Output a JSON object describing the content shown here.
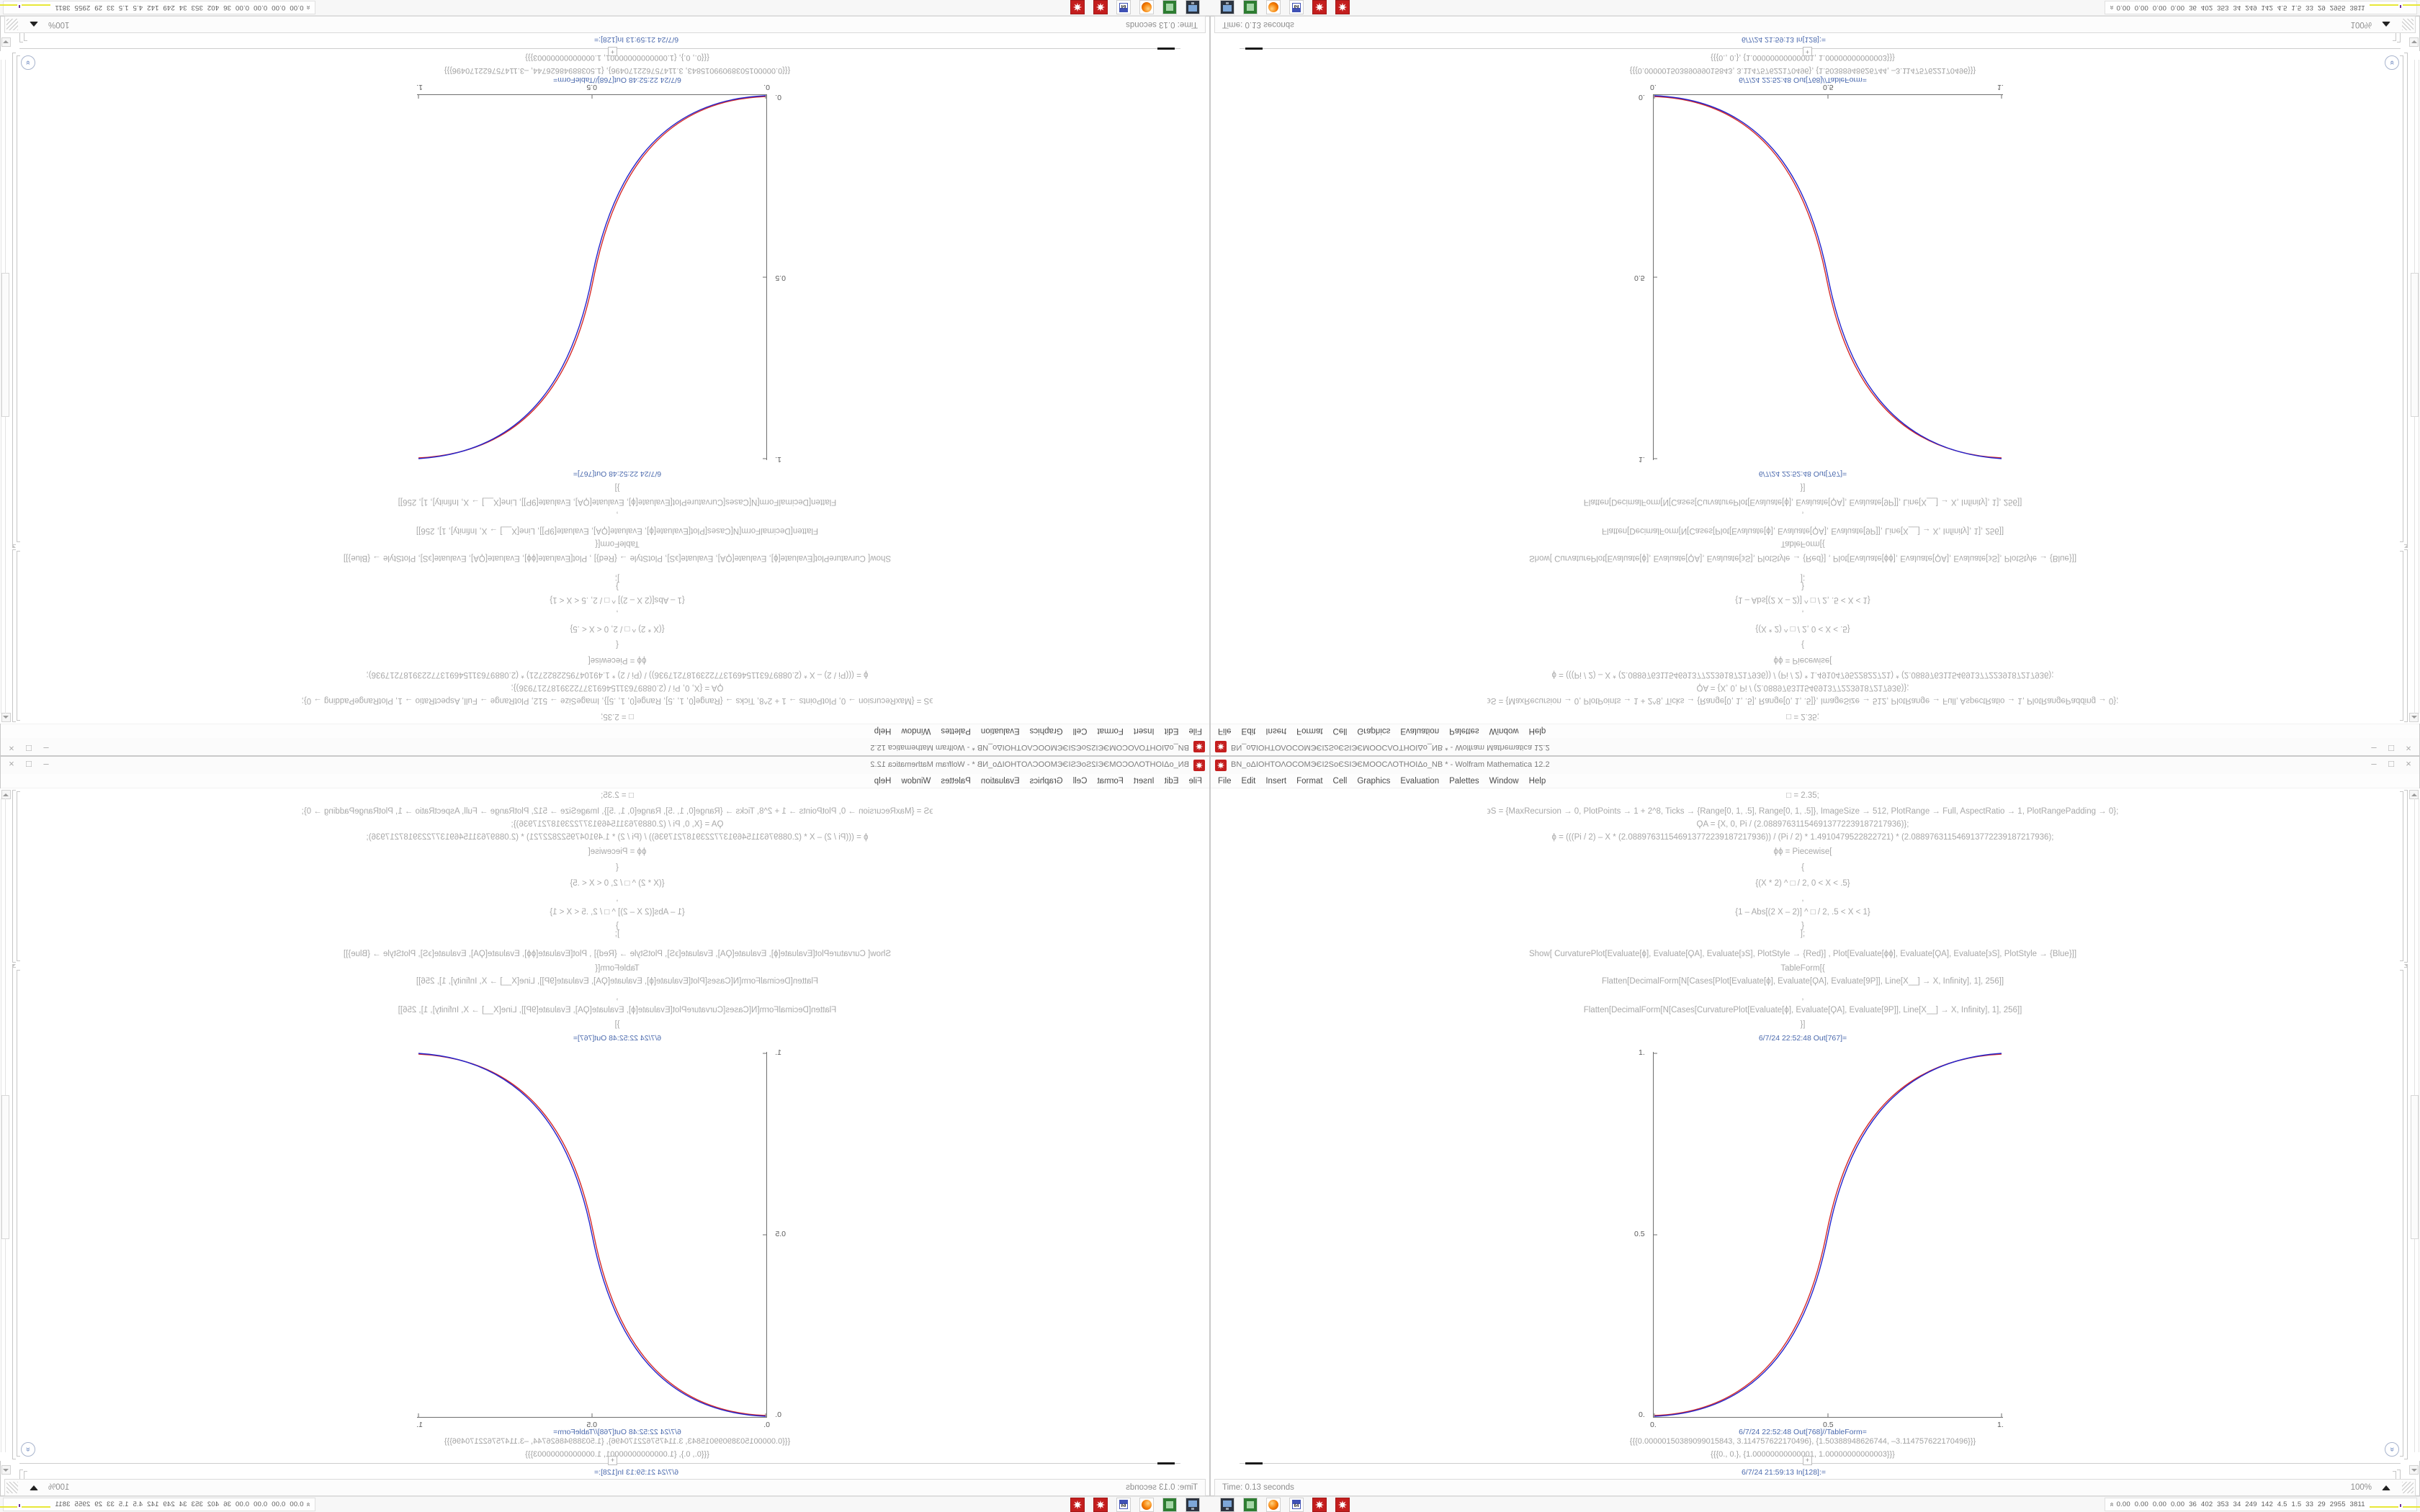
{
  "window": {
    "title": "ΒΝ_οΔΙΟΗΤΟΛΟCΟΜЭЄΙ2SοЄSΙЭЄΜΟΟCΛΟΤΗΟΙΔο_ΝΒ * - Wolfram Mathematica 12.2",
    "controls": {
      "minimize": "–",
      "maximize": "□",
      "close": "×"
    },
    "menu": [
      "File",
      "Edit",
      "Insert",
      "Format",
      "Cell",
      "Graphics",
      "Evaluation",
      "Palettes",
      "Window",
      "Help"
    ]
  },
  "code": {
    "lines": [
      "□ = 2.35;",
      "϶S = {MaxRecursion → 0, PlotPoints → 1 + 2^8, Ticks → {Range[0, 1, .5], Range[0, 1, .5]}, ImageSize → 512, PlotRange → Full, AspectRatio → 1, PlotRangePadding → 0};",
      "ϘΑ = {X, 0, Pi / (2.088976311546913772239187217936)};",
      "ϕ = (((Pi / 2) – X * (2.088976311546913772239187217936)) / (Pi / 2) * 1.4910479522822721) * (2.088976311546913772239187217936);",
      "ϕϕ = Piecewise[",
      "{",
      "{(X * 2) ^ □ / 2, 0 < X < .5}",
      ",",
      "{1 – Abs[(2 X – 2)] ^ □ / 2, .5 < X < 1}",
      "}",
      "];",
      "Show[  CurvaturePlot[Evaluate[ϕ], Evaluate[ϘΑ], Evaluate[϶S], PlotStyle → {Red}]  ,  Plot[Evaluate[ϕϕ], Evaluate[ϘΑ], Evaluate[϶S], PlotStyle → {Blue}]]",
      "TableForm[{",
      "Flatten[DecimalForm[N[Cases[Plot[Evaluate[ϕ], Evaluate[ϘΑ], Evaluate[9Ρ]], Line[X__] → X, Infinity], 1], 256]]",
      ",",
      "Flatten[DecimalForm[N[Cases[CurvaturePlot[Evaluate[ϕ], Evaluate[ϘΑ], Evaluate[9Ρ]], Line[X__] → X, Infinity], 1], 256]]",
      "}]"
    ]
  },
  "labels": {
    "out_plot": "6/7/24 22:52:48 Out[767]=",
    "out_table": "6/7/24 22:52:48 Out[768]//TableForm=",
    "in_next": "6/7/24 21:59:13 In[128]:="
  },
  "table_rows": [
    "{{{0.00000150389099015843, 3.114757622170496}, {1.50388948626744, –3.114757622170496}}}",
    "{{{0., 0.}, {1.00000000000001, 1.00000000000003}}}"
  ],
  "plot": {
    "xticks": [
      "0.",
      "0.5",
      "1."
    ],
    "yticks": [
      "1.",
      "0.5",
      "0."
    ],
    "red": "#d42a2a",
    "blue": "#2424cc"
  },
  "chart_data": {
    "type": "line",
    "title": "",
    "xlabel": "",
    "ylabel": "",
    "xlim": [
      0,
      1
    ],
    "ylim": [
      0,
      1
    ],
    "xticks": [
      0,
      0.5,
      1
    ],
    "yticks": [
      0,
      0.5,
      1
    ],
    "grid": false,
    "series": [
      {
        "name": "CurvaturePlot (Red)",
        "color": "#d42a2a",
        "x": [
          0,
          0.1,
          0.2,
          0.3,
          0.4,
          0.5,
          0.6,
          0.7,
          0.8,
          0.9,
          1.0
        ],
        "y": [
          0,
          0.011,
          0.058,
          0.151,
          0.297,
          0.5,
          0.703,
          0.849,
          0.942,
          0.989,
          1.0
        ]
      },
      {
        "name": "Plot of Piecewise (2x)^2.35/2 (Blue)",
        "color": "#2424cc",
        "x": [
          0,
          0.1,
          0.2,
          0.3,
          0.4,
          0.5,
          0.6,
          0.7,
          0.8,
          0.9,
          1.0
        ],
        "y": [
          0,
          0.011,
          0.058,
          0.151,
          0.297,
          0.5,
          0.703,
          0.849,
          0.942,
          0.989,
          1.0
        ]
      }
    ]
  },
  "insertion": {
    "plus": "+"
  },
  "scroll": {
    "chevrons": "»"
  },
  "statusbar": {
    "time": "Time: 0.13 seconds",
    "zoom": "100%"
  },
  "taskbar": {
    "icons": [
      "terminal-monitor",
      "green-package",
      "firefox",
      "floppy-64",
      "mathematica",
      "mathematica"
    ],
    "floppy_label": "64"
  },
  "tray": {
    "chevrons": "»",
    "numbers": "0.00 0.00 0.00 0.00   36   402   353   34   249   142   4.5   1.5   33   29   2955 3811"
  },
  "quadrants": [
    {
      "id": "q-tl",
      "orientation": "rotated-180"
    },
    {
      "id": "q-tr",
      "orientation": "flipped-vertical"
    },
    {
      "id": "q-bl",
      "orientation": "flipped-horizontal"
    },
    {
      "id": "q-br",
      "orientation": "normal"
    }
  ]
}
